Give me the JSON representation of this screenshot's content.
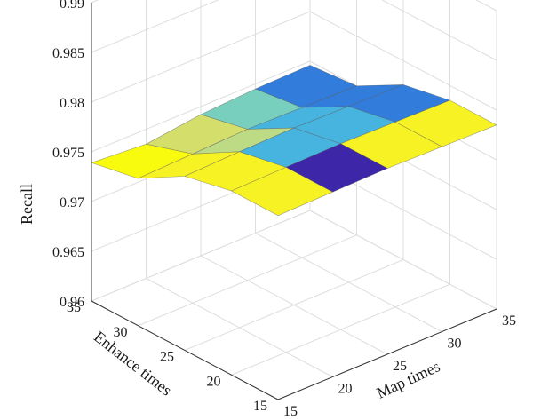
{
  "chart_data": {
    "type": "surface",
    "title": "",
    "xlabel": "Map times",
    "ylabel": "Enhance times",
    "zlabel": "Recall",
    "x": [
      15,
      20,
      25,
      30,
      35
    ],
    "y": [
      15,
      20,
      25,
      30,
      35
    ],
    "zlim": [
      0.96,
      0.99
    ],
    "x_ticks": [
      "15",
      "20",
      "25",
      "30",
      "35"
    ],
    "y_ticks": [
      "15",
      "20",
      "25",
      "30",
      "35"
    ],
    "z_ticks": [
      "0.96",
      "0.965",
      "0.97",
      "0.975",
      "0.98",
      "0.985",
      "0.99"
    ],
    "grid": true,
    "colormap": "parula",
    "z": [
      [
        0.9785,
        0.9786,
        0.9787,
        0.9786,
        0.9785
      ],
      [
        0.9785,
        0.9786,
        0.9787,
        0.9786,
        0.9785
      ],
      [
        0.9775,
        0.9777,
        0.9778,
        0.9777,
        0.9776
      ],
      [
        0.9748,
        0.975,
        0.9752,
        0.9751,
        0.975
      ],
      [
        0.9739,
        0.9735,
        0.9742,
        0.9745,
        0.9746
      ]
    ],
    "face_values": [
      [
        0.9786,
        0.9774,
        0.9786,
        0.9786
      ],
      [
        0.9786,
        0.9778,
        0.9778,
        0.9776
      ],
      [
        0.9786,
        0.9782,
        0.9778,
        0.9776
      ],
      [
        0.9787,
        0.9783,
        0.978,
        0.9776
      ]
    ]
  },
  "colors": {
    "colormap_stops": [
      "#3e26a8",
      "#2f97ec",
      "#5bcbd4",
      "#b9d98a",
      "#f3e346",
      "#f9fb0e"
    ]
  }
}
